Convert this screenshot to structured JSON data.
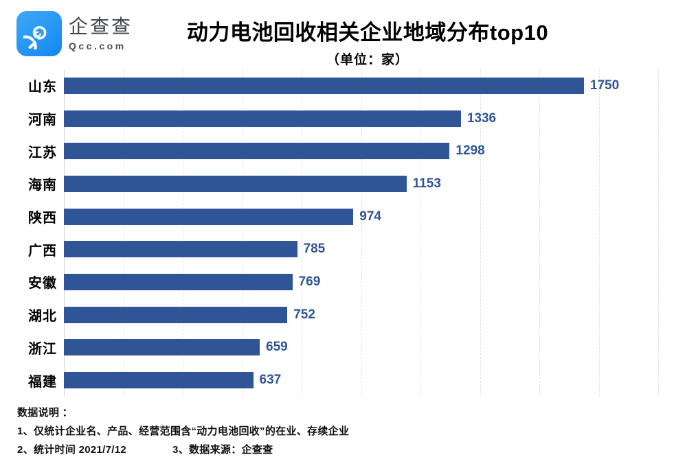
{
  "logo": {
    "name": "企查查",
    "domain": "Qcc.com"
  },
  "header": {
    "title": "动力电池回收相关企业地域分布top10",
    "subtitle": "（单位：家）"
  },
  "chart_data": {
    "type": "bar",
    "orientation": "horizontal",
    "title": "动力电池回收相关企业地域分布top10",
    "unit_label": "（单位：家）",
    "categories": [
      "山东",
      "河南",
      "江苏",
      "海南",
      "陕西",
      "广西",
      "安徽",
      "湖北",
      "浙江",
      "福建"
    ],
    "values": [
      1750,
      1336,
      1298,
      1153,
      974,
      785,
      769,
      752,
      659,
      637
    ],
    "xlim": [
      0,
      2000
    ],
    "gridline_interval": 200,
    "grid": true,
    "legend": "none",
    "bar_color": "#2f5597",
    "value_label_color": "#2f5597"
  },
  "footer": {
    "heading": "数据说明 ：",
    "note1": "1、仅统计企业名、产品、经营范围含“动力电池回收”的在业、存续企业",
    "note2": "2、统计时间 2021/7/12",
    "note3": "3、数据来源：企查查"
  }
}
